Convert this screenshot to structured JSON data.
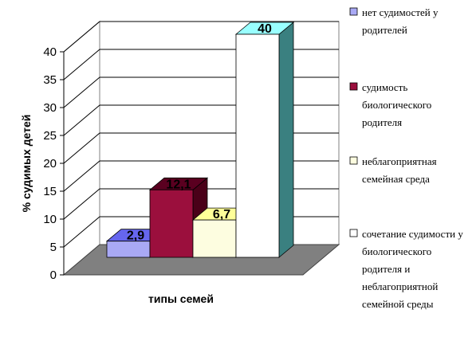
{
  "chart_data": {
    "type": "bar",
    "style": "3d-column",
    "xlabel": "типы семей",
    "ylabel": "% судимых детей",
    "ylim": [
      0,
      40
    ],
    "yticks": [
      0,
      5,
      10,
      15,
      20,
      25,
      30,
      35,
      40
    ],
    "grid": true,
    "legend_position": "right",
    "series": [
      {
        "name": "нет судимостей у родителей",
        "value": 2.9,
        "label": "2,9",
        "color": "#a9a9f5",
        "legend_lines": [
          "нет судимостей у",
          "родителей"
        ]
      },
      {
        "name": "судимость биологического родителя",
        "value": 12.1,
        "label": "12,1",
        "color": "#9b0f3d",
        "legend_lines": [
          "судимость",
          "биологического",
          "родителя"
        ]
      },
      {
        "name": "неблагоприятная семейная среда",
        "value": 6.7,
        "label": "6,7",
        "color": "#fdfde0",
        "legend_lines": [
          "неблагоприятная",
          "семейная среда"
        ]
      },
      {
        "name": "сочетание судимости у биологического родителя и неблагоприятной семейной среды",
        "value": 40,
        "label": "40",
        "color": "#ffffff",
        "legend_lines": [
          "сочетание судимости у",
          "биологического",
          "родителя и",
          "неблагоприятной",
          "семейной среды"
        ]
      }
    ]
  }
}
